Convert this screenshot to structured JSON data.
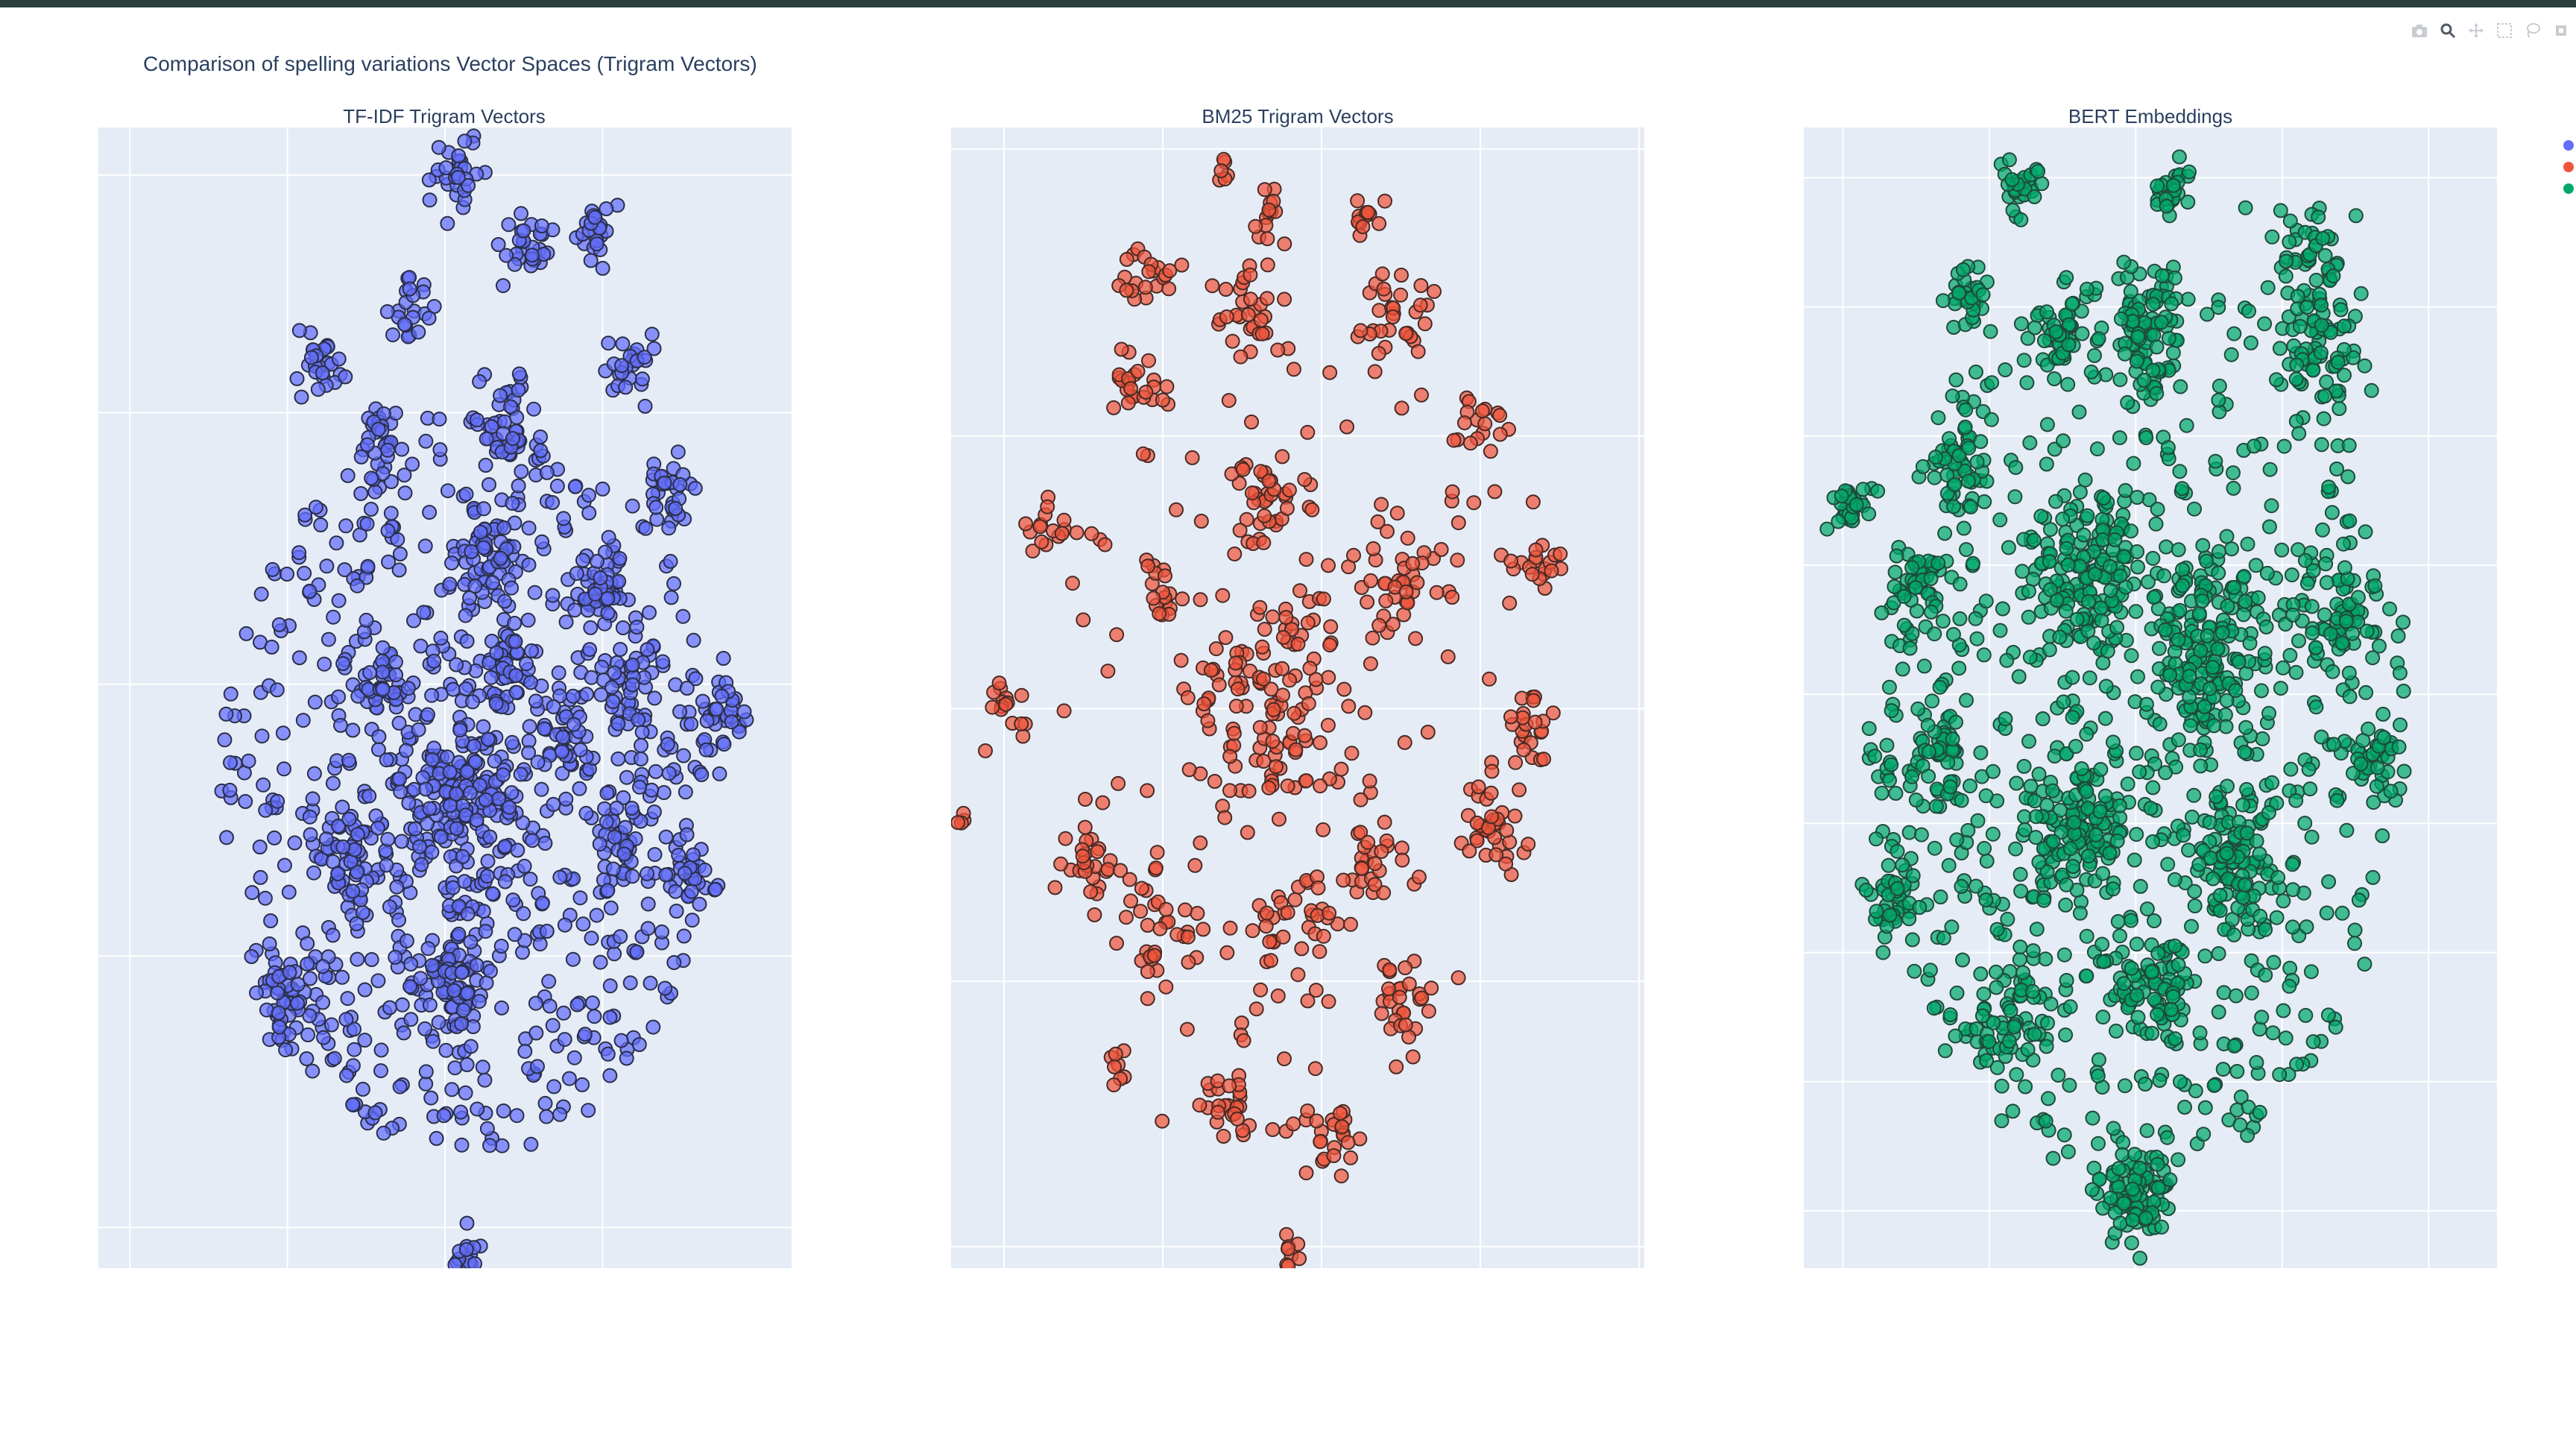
{
  "figure_title": "Comparison of spelling variations Vector Spaces (Trigram Vectors)",
  "modebar": {
    "icons": [
      "camera-icon",
      "zoom-icon",
      "pan-icon",
      "box-select-icon",
      "lasso-icon",
      "autoscale-icon"
    ]
  },
  "chart_data": [
    {
      "type": "scatter",
      "title": "TF-IDF Trigram Vectors",
      "xlabel": "",
      "ylabel": "",
      "xlim": [
        -82,
        72
      ],
      "ylim": [
        -76,
        92
      ],
      "grid": true,
      "grid_color": "#ffffff",
      "plot_bg": "#e5ecf6",
      "marker_color": "#636efa",
      "marker_line_color": "#2a2f4a",
      "xticks": [
        -75,
        -40,
        -5,
        30
      ],
      "yticks": [
        -70,
        -30,
        10,
        50,
        85
      ],
      "series": [
        {
          "clusters": [
            {
              "x": -2,
              "y": 85,
              "r": 5,
              "n": 30
            },
            {
              "x": 13,
              "y": 75,
              "r": 5,
              "n": 28
            },
            {
              "x": 29,
              "y": 77,
              "r": 4,
              "n": 24
            },
            {
              "x": -13,
              "y": 65,
              "r": 4,
              "n": 22
            },
            {
              "x": -32,
              "y": 57,
              "r": 5,
              "n": 26
            },
            {
              "x": 35,
              "y": 57,
              "r": 5,
              "n": 26
            },
            {
              "x": -19,
              "y": 47,
              "r": 5,
              "n": 26
            },
            {
              "x": 8,
              "y": 48,
              "r": 7,
              "n": 46
            },
            {
              "x": 45,
              "y": 38,
              "r": 6,
              "n": 32
            },
            {
              "x": 5,
              "y": 29,
              "r": 6,
              "n": 44
            },
            {
              "x": 30,
              "y": 25,
              "r": 5,
              "n": 30
            },
            {
              "x": -18,
              "y": 10,
              "r": 6,
              "n": 40
            },
            {
              "x": 10,
              "y": 13,
              "r": 6,
              "n": 36
            },
            {
              "x": 37,
              "y": 10,
              "r": 6,
              "n": 32
            },
            {
              "x": 55,
              "y": 5,
              "r": 6,
              "n": 34
            },
            {
              "x": 22,
              "y": 3,
              "r": 5,
              "n": 28
            },
            {
              "x": 0,
              "y": -7,
              "r": 12,
              "n": 150
            },
            {
              "x": 35,
              "y": -13,
              "r": 6,
              "n": 32
            },
            {
              "x": 50,
              "y": -18,
              "r": 5,
              "n": 26
            },
            {
              "x": -25,
              "y": -17,
              "r": 8,
              "n": 60
            },
            {
              "x": -40,
              "y": -37,
              "r": 6,
              "n": 44
            },
            {
              "x": -5,
              "y": -32,
              "r": 10,
              "n": 80
            },
            {
              "x": -1,
              "y": -75,
              "r": 4,
              "n": 22
            }
          ],
          "scatter": {
            "cx": 0,
            "cy": -5,
            "rx": 55,
            "ry": 55,
            "n": 700
          }
        }
      ]
    },
    {
      "type": "scatter",
      "title": "BM25 Trigram Vectors",
      "xlabel": "",
      "ylabel": "",
      "xlim": [
        -65,
        66
      ],
      "ylim": [
        -78,
        81
      ],
      "grid": true,
      "grid_color": "#ffffff",
      "plot_bg": "#e5ecf6",
      "marker_color": "#ef553b",
      "marker_line_color": "#4a2a24",
      "xticks": [
        -55,
        -25,
        5,
        35,
        65
      ],
      "yticks": [
        -75,
        -38,
        0,
        38,
        78
      ],
      "series": [
        {
          "clusters": [
            {
              "x": -14,
              "y": 75,
              "r": 2,
              "n": 6
            },
            {
              "x": -5,
              "y": 68,
              "r": 3,
              "n": 14
            },
            {
              "x": 14,
              "y": 68,
              "r": 3,
              "n": 14
            },
            {
              "x": -28,
              "y": 60,
              "r": 5,
              "n": 22
            },
            {
              "x": -8,
              "y": 55,
              "r": 6,
              "n": 30
            },
            {
              "x": 20,
              "y": 55,
              "r": 6,
              "n": 30
            },
            {
              "x": -30,
              "y": 45,
              "r": 5,
              "n": 22
            },
            {
              "x": 35,
              "y": 40,
              "r": 4,
              "n": 18
            },
            {
              "x": -5,
              "y": 30,
              "r": 8,
              "n": 40
            },
            {
              "x": -46,
              "y": 25,
              "r": 4,
              "n": 16
            },
            {
              "x": 20,
              "y": 18,
              "r": 8,
              "n": 40
            },
            {
              "x": -25,
              "y": 15,
              "r": 4,
              "n": 16
            },
            {
              "x": 45,
              "y": 20,
              "r": 5,
              "n": 20
            },
            {
              "x": -55,
              "y": 0,
              "r": 4,
              "n": 16
            },
            {
              "x": -5,
              "y": 0,
              "r": 14,
              "n": 120
            },
            {
              "x": 45,
              "y": -2,
              "r": 5,
              "n": 24
            },
            {
              "x": 38,
              "y": -15,
              "r": 6,
              "n": 30
            },
            {
              "x": -40,
              "y": -22,
              "r": 5,
              "n": 24
            },
            {
              "x": 15,
              "y": -22,
              "r": 5,
              "n": 22
            },
            {
              "x": -25,
              "y": -30,
              "r": 6,
              "n": 28
            },
            {
              "x": 0,
              "y": -30,
              "r": 8,
              "n": 36
            },
            {
              "x": 20,
              "y": -42,
              "r": 5,
              "n": 24
            },
            {
              "x": -13,
              "y": -55,
              "r": 5,
              "n": 24
            },
            {
              "x": 8,
              "y": -60,
              "r": 5,
              "n": 24
            },
            {
              "x": -33,
              "y": -50,
              "r": 2,
              "n": 8
            },
            {
              "x": -1,
              "y": -76,
              "r": 2,
              "n": 8
            },
            {
              "x": -63,
              "y": -15,
              "r": 1,
              "n": 4
            }
          ],
          "scatter": {
            "cx": 0,
            "cy": 0,
            "rx": 45,
            "ry": 60,
            "n": 120
          }
        }
      ]
    },
    {
      "type": "scatter",
      "title": "BERT Embeddings",
      "xlabel": "",
      "ylabel": "",
      "xlim": [
        -68,
        74
      ],
      "ylim": [
        -66,
        93
      ],
      "grid": true,
      "grid_color": "#ffffff",
      "plot_bg": "#e5ecf6",
      "marker_color": "#00a86b",
      "marker_line_color": "#1e4a3a",
      "xticks": [
        -60,
        -30,
        0,
        30,
        60
      ],
      "yticks": [
        -58,
        -40,
        -22,
        -4,
        14,
        32,
        50,
        68,
        86
      ],
      "series": [
        {
          "clusters": [
            {
              "x": -24,
              "y": 85,
              "r": 4,
              "n": 30
            },
            {
              "x": 8,
              "y": 84,
              "r": 4,
              "n": 26
            },
            {
              "x": 35,
              "y": 75,
              "r": 7,
              "n": 50
            },
            {
              "x": -35,
              "y": 70,
              "r": 4,
              "n": 30
            },
            {
              "x": -15,
              "y": 65,
              "r": 6,
              "n": 40
            },
            {
              "x": 2,
              "y": 65,
              "r": 8,
              "n": 80
            },
            {
              "x": 38,
              "y": 62,
              "r": 8,
              "n": 60
            },
            {
              "x": -35,
              "y": 45,
              "r": 6,
              "n": 40
            },
            {
              "x": -58,
              "y": 40,
              "r": 4,
              "n": 30
            },
            {
              "x": -45,
              "y": 30,
              "r": 6,
              "n": 40
            },
            {
              "x": -10,
              "y": 30,
              "r": 12,
              "n": 140
            },
            {
              "x": 15,
              "y": 20,
              "r": 12,
              "n": 140
            },
            {
              "x": 40,
              "y": 25,
              "r": 8,
              "n": 60
            },
            {
              "x": 50,
              "y": 5,
              "r": 5,
              "n": 30
            },
            {
              "x": -40,
              "y": 5,
              "r": 6,
              "n": 40
            },
            {
              "x": -12,
              "y": -5,
              "r": 10,
              "n": 120
            },
            {
              "x": 20,
              "y": -10,
              "r": 10,
              "n": 110
            },
            {
              "x": -50,
              "y": -15,
              "r": 5,
              "n": 40
            },
            {
              "x": -25,
              "y": -30,
              "r": 8,
              "n": 60
            },
            {
              "x": 5,
              "y": -28,
              "r": 8,
              "n": 60
            },
            {
              "x": 0,
              "y": -55,
              "r": 6,
              "n": 80
            }
          ],
          "scatter": {
            "cx": 0,
            "cy": 10,
            "rx": 55,
            "ry": 65,
            "n": 700
          }
        }
      ]
    }
  ]
}
